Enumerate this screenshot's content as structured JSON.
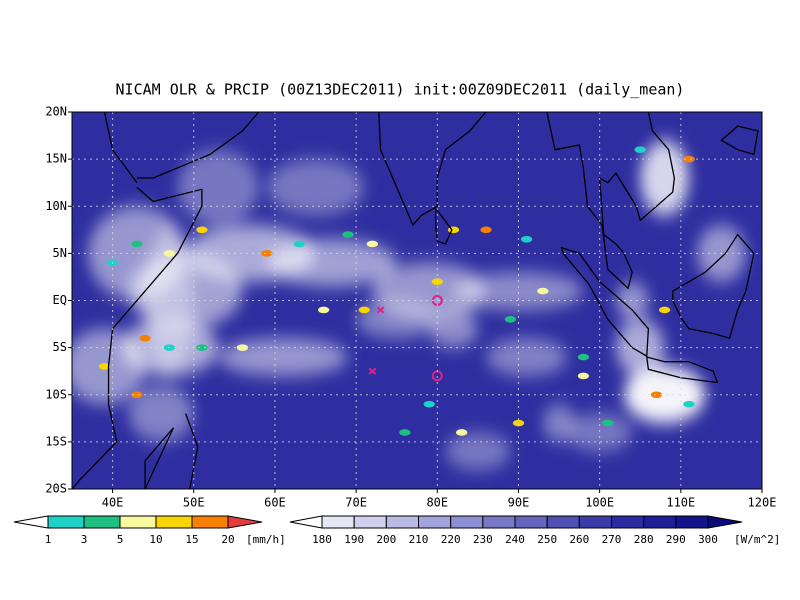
{
  "title": "NICAM OLR & PRCIP (00Z13DEC2011) init:00Z09DEC2011 (daily_mean)",
  "map": {
    "lat_ticks": [
      "20N",
      "15N",
      "10N",
      "5N",
      "EQ",
      "5S",
      "10S",
      "15S",
      "20S"
    ],
    "lon_ticks": [
      "40E",
      "50E",
      "60E",
      "70E",
      "80E",
      "90E",
      "100E",
      "110E",
      "120E"
    ]
  },
  "legend_precip": {
    "labels": [
      "1",
      "3",
      "5",
      "10",
      "15",
      "20"
    ],
    "unit": "[mm/h]",
    "colors": [
      "#ffffff",
      "#1ed2c8",
      "#1ec082",
      "#f8f8a0",
      "#f8d400",
      "#f88000",
      "#e63c3c"
    ]
  },
  "legend_olr": {
    "labels": [
      "180",
      "190",
      "200",
      "210",
      "220",
      "230",
      "240",
      "250",
      "260",
      "270",
      "280",
      "290",
      "300"
    ],
    "unit": "[W/m^2]",
    "colors": [
      "#ffffff",
      "#e6e6f4",
      "#d0d0ee",
      "#babae6",
      "#a4a4dc",
      "#8e8ed2",
      "#7878c6",
      "#6464bc",
      "#5050b2",
      "#3c3ca8",
      "#2c2ca0",
      "#1e1e96",
      "#14148a",
      "#0a0a7a"
    ]
  }
}
